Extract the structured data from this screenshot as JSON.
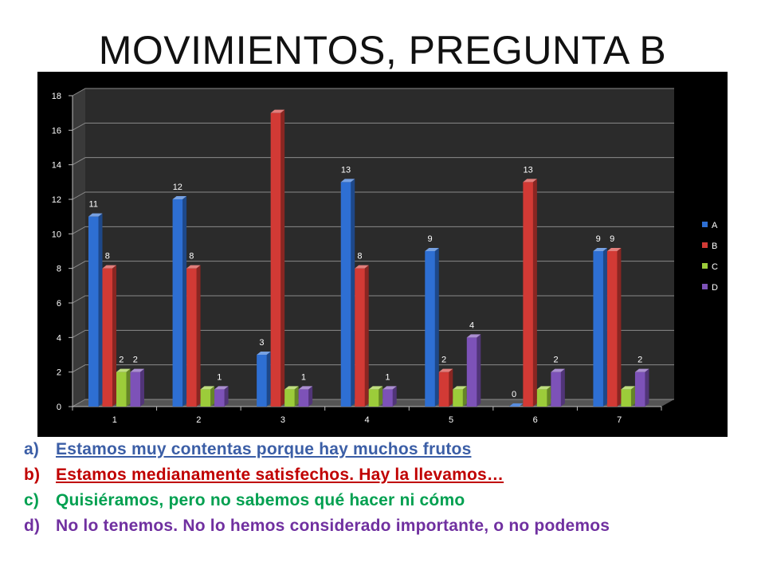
{
  "title": "MOVIMIENTOS, PREGUNTA B",
  "chart_data": {
    "type": "bar",
    "categories": [
      "1",
      "2",
      "3",
      "4",
      "5",
      "6",
      "7"
    ],
    "series": [
      {
        "name": "A",
        "color": "#2e6fd3",
        "values": [
          11,
          12,
          3,
          13,
          9,
          0,
          9
        ]
      },
      {
        "name": "B",
        "color": "#d23a35",
        "values": [
          8,
          8,
          17,
          8,
          2,
          13,
          9
        ]
      },
      {
        "name": "C",
        "color": "#9ccc3a",
        "values": [
          2,
          1,
          1,
          1,
          1,
          1,
          1
        ]
      },
      {
        "name": "D",
        "color": "#7d52b8",
        "values": [
          2,
          1,
          1,
          1,
          4,
          2,
          2
        ]
      }
    ],
    "data_labels": [
      [
        "11",
        "8",
        "2",
        "2"
      ],
      [
        "12",
        "8",
        "",
        "1"
      ],
      [
        "3",
        "",
        "",
        "1"
      ],
      [
        "13",
        "8",
        "",
        "1"
      ],
      [
        "9",
        "2",
        "",
        "4"
      ],
      [
        "0",
        "13",
        "",
        "2"
      ],
      [
        "9",
        "9",
        "",
        "2"
      ]
    ],
    "yticks": [
      "0",
      "2",
      "4",
      "6",
      "8",
      "10",
      "12",
      "14",
      "16",
      "18"
    ],
    "ylim": [
      0,
      18
    ],
    "grid": true,
    "legend_position": "right",
    "xlabel": "",
    "ylabel": ""
  },
  "options": [
    {
      "letter": "a)",
      "text": "Estamos muy contentas porque hay muchos frutos"
    },
    {
      "letter": "b)",
      "text": "Estamos medianamente satisfechos. Hay la llevamos…"
    },
    {
      "letter": "c)",
      "text": "Quisiéramos, pero no sabemos qué hacer ni cómo"
    },
    {
      "letter": "d)",
      "text": "No lo tenemos. No lo hemos considerado importante, o no podemos"
    }
  ]
}
